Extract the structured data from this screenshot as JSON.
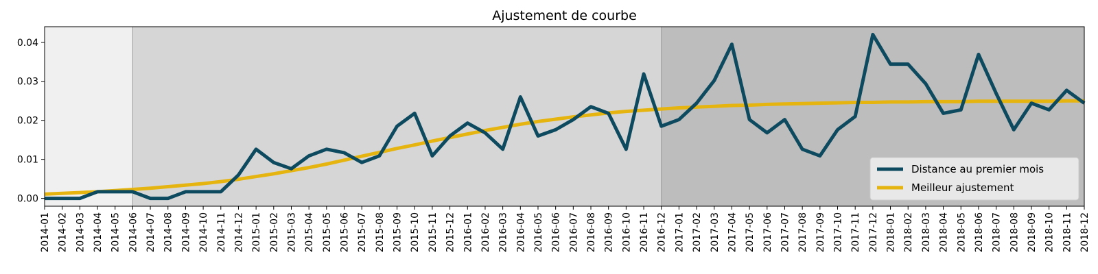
{
  "chart_data": {
    "type": "line",
    "title": "Ajustement de courbe",
    "xlabel": "",
    "ylabel": "",
    "ylim": [
      -0.002,
      0.044
    ],
    "yticks": [
      "0.00",
      "0.01",
      "0.02",
      "0.03",
      "0.04"
    ],
    "ytick_values": [
      0.0,
      0.01,
      0.02,
      0.03,
      0.04
    ],
    "x": [
      "2014-01",
      "2014-02",
      "2014-03",
      "2014-04",
      "2014-05",
      "2014-06",
      "2014-07",
      "2014-08",
      "2014-09",
      "2014-10",
      "2014-11",
      "2014-12",
      "2015-01",
      "2015-02",
      "2015-03",
      "2015-04",
      "2015-05",
      "2015-06",
      "2015-07",
      "2015-08",
      "2015-09",
      "2015-10",
      "2015-11",
      "2015-12",
      "2016-01",
      "2016-02",
      "2016-03",
      "2016-04",
      "2016-05",
      "2016-06",
      "2016-07",
      "2016-08",
      "2016-09",
      "2016-10",
      "2016-11",
      "2016-12",
      "2017-01",
      "2017-02",
      "2017-03",
      "2017-04",
      "2017-05",
      "2017-06",
      "2017-07",
      "2017-08",
      "2017-09",
      "2017-10",
      "2017-11",
      "2017-12",
      "2018-01",
      "2018-02",
      "2018-03",
      "2018-04",
      "2018-05",
      "2018-06",
      "2018-07",
      "2018-08",
      "2018-09",
      "2018-10",
      "2018-11",
      "2018-12"
    ],
    "regions": [
      {
        "from": "2014-01",
        "to": "2014-06",
        "color": "#f0f0f0"
      },
      {
        "from": "2014-06",
        "to": "2016-12",
        "color": "#d6d6d6"
      },
      {
        "from": "2016-12",
        "to": "2018-12",
        "color": "#bdbdbd"
      }
    ],
    "series": [
      {
        "name": "Distance au premier mois",
        "color": "#0d4a5f",
        "values": [
          0.0,
          0.0,
          0.0,
          0.0017,
          0.0017,
          0.0017,
          0.0,
          0.0,
          0.0017,
          0.0017,
          0.0017,
          0.006,
          0.0126,
          0.0092,
          0.0076,
          0.0109,
          0.0126,
          0.0117,
          0.0092,
          0.0109,
          0.0185,
          0.0218,
          0.0109,
          0.016,
          0.0193,
          0.0168,
          0.0126,
          0.026,
          0.016,
          0.0176,
          0.0202,
          0.0235,
          0.0218,
          0.0126,
          0.0319,
          0.0185,
          0.0202,
          0.0244,
          0.0302,
          0.0395,
          0.0202,
          0.0168,
          0.0202,
          0.0126,
          0.0109,
          0.0176,
          0.021,
          0.042,
          0.0344,
          0.0344,
          0.0294,
          0.0218,
          0.0227,
          0.0369,
          0.0269,
          0.0176,
          0.0244,
          0.0227,
          0.0277,
          0.0244
        ]
      },
      {
        "name": "Meilleur ajustement",
        "color": "#e6b40f",
        "values": [
          0.0011,
          0.0013,
          0.0015,
          0.0017,
          0.002,
          0.0023,
          0.0026,
          0.003,
          0.0034,
          0.0038,
          0.0043,
          0.0049,
          0.0056,
          0.0063,
          0.0071,
          0.0079,
          0.0088,
          0.0098,
          0.0108,
          0.0118,
          0.0128,
          0.0137,
          0.0147,
          0.0156,
          0.0165,
          0.0174,
          0.0182,
          0.019,
          0.0197,
          0.0203,
          0.0209,
          0.0214,
          0.0219,
          0.0223,
          0.0226,
          0.0229,
          0.0232,
          0.0234,
          0.0236,
          0.0238,
          0.0239,
          0.0241,
          0.0242,
          0.0243,
          0.0244,
          0.0245,
          0.0246,
          0.0246,
          0.0247,
          0.0247,
          0.0248,
          0.0248,
          0.0248,
          0.0249,
          0.0249,
          0.0249,
          0.0249,
          0.0249,
          0.025,
          0.025
        ]
      }
    ],
    "legend": {
      "position": "lower-right"
    },
    "grid": false
  }
}
